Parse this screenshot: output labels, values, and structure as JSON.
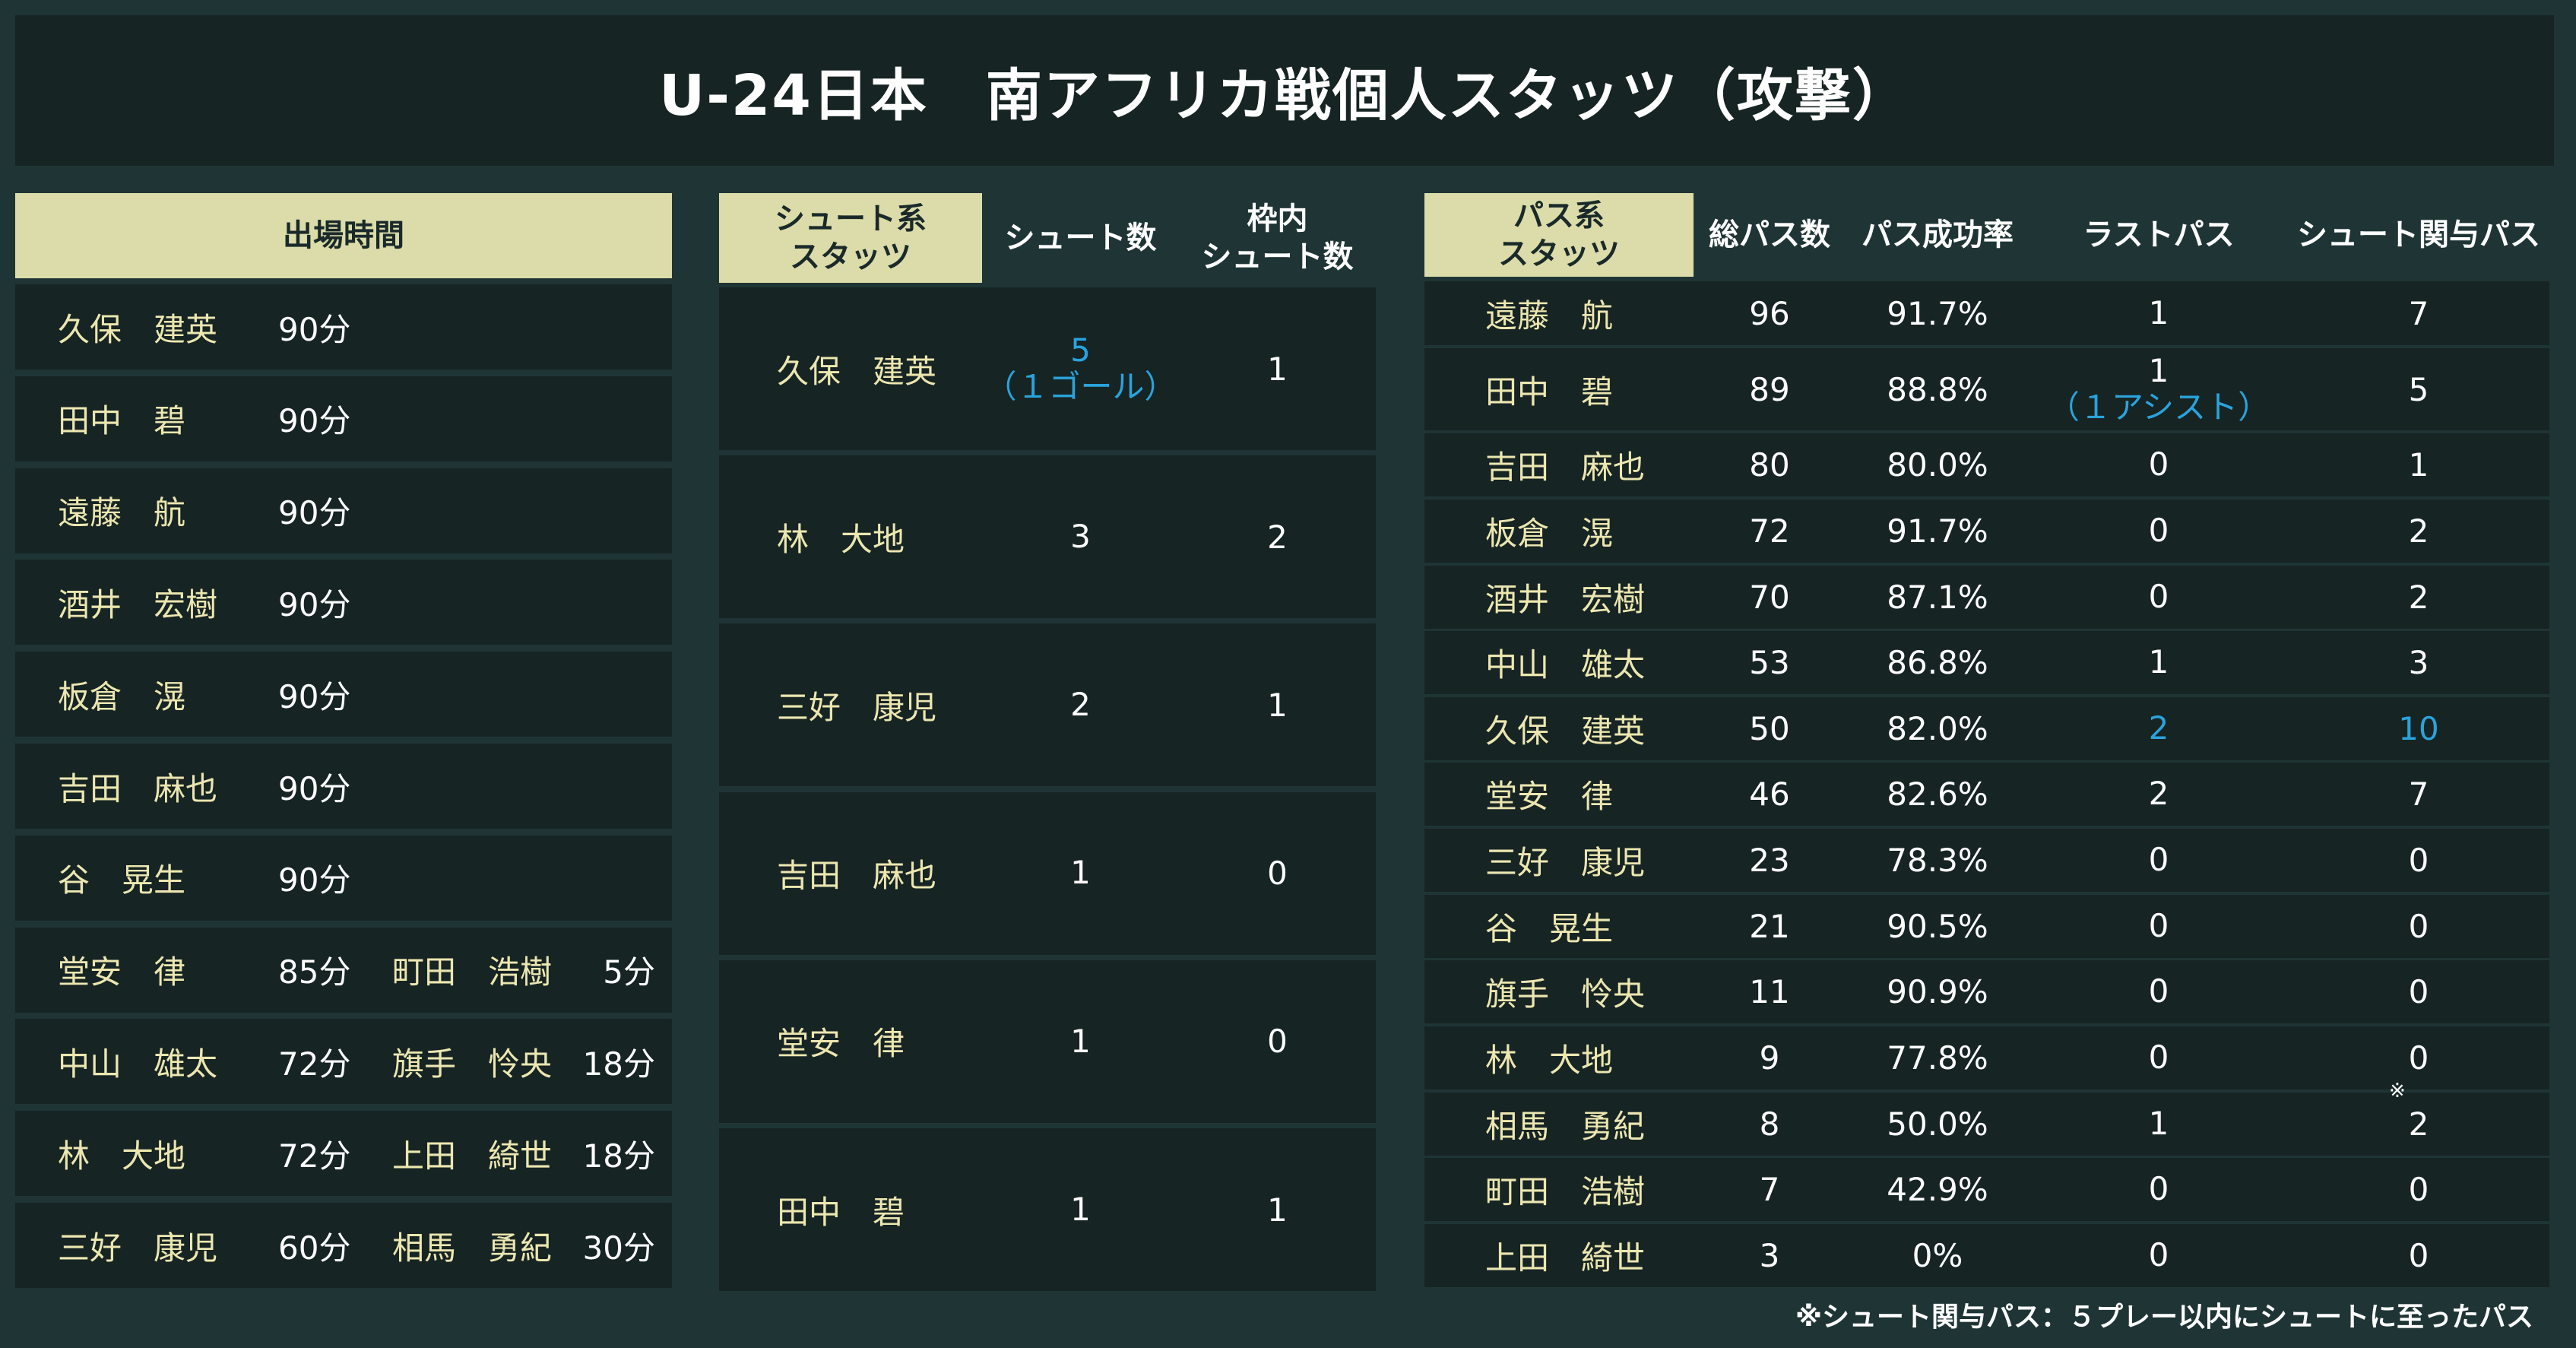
{
  "title": "U-24日本　南アフリカ戦個人スタッツ（攻撃）",
  "playing_time": {
    "header": "出場時間",
    "rows": [
      {
        "name": "久保　建英",
        "time": "90分"
      },
      {
        "name": "田中　碧",
        "time": "90分"
      },
      {
        "name": "遠藤　航",
        "time": "90分"
      },
      {
        "name": "酒井　宏樹",
        "time": "90分"
      },
      {
        "name": "板倉　滉",
        "time": "90分"
      },
      {
        "name": "吉田　麻也",
        "time": "90分"
      },
      {
        "name": "谷　晃生",
        "time": "90分"
      },
      {
        "name": "堂安　律",
        "time": "85分",
        "sub_name": "町田　浩樹",
        "sub_time": "5分"
      },
      {
        "name": "中山　雄太",
        "time": "72分",
        "sub_name": "旗手　怜央",
        "sub_time": "18分"
      },
      {
        "name": "林　大地",
        "time": "72分",
        "sub_name": "上田　綺世",
        "sub_time": "18分"
      },
      {
        "name": "三好　康児",
        "time": "60分",
        "sub_name": "相馬　勇紀",
        "sub_time": "30分"
      }
    ]
  },
  "shot_stats": {
    "headers": [
      "シュート系\nスタッツ",
      "シュート数",
      "枠内\nシュート数"
    ],
    "rows": [
      {
        "name": "久保　建英",
        "shots": "5",
        "shots_note": "（１ゴール）",
        "on_target": "1"
      },
      {
        "name": "林　大地",
        "shots": "3",
        "shots_note": "",
        "on_target": "2"
      },
      {
        "name": "三好　康児",
        "shots": "2",
        "shots_note": "",
        "on_target": "1"
      },
      {
        "name": "吉田　麻也",
        "shots": "1",
        "shots_note": "",
        "on_target": "0"
      },
      {
        "name": "堂安　律",
        "shots": "1",
        "shots_note": "",
        "on_target": "0"
      },
      {
        "name": "田中　碧",
        "shots": "1",
        "shots_note": "",
        "on_target": "1"
      }
    ]
  },
  "pass_stats": {
    "headers": [
      "パス系\nスタッツ",
      "総パス数",
      "パス成功率",
      "ラストパス",
      "シュート関与パス"
    ],
    "rows": [
      {
        "name": "遠藤　航",
        "total": "96",
        "rate": "91.7%",
        "last": "1",
        "last_note": "",
        "involved": "7"
      },
      {
        "name": "田中　碧",
        "total": "89",
        "rate": "88.8%",
        "last": "1",
        "last_note": "（１アシスト）",
        "involved": "5"
      },
      {
        "name": "吉田　麻也",
        "total": "80",
        "rate": "80.0%",
        "last": "0",
        "last_note": "",
        "involved": "1"
      },
      {
        "name": "板倉　滉",
        "total": "72",
        "rate": "91.7%",
        "last": "0",
        "last_note": "",
        "involved": "2"
      },
      {
        "name": "酒井　宏樹",
        "total": "70",
        "rate": "87.1%",
        "last": "0",
        "last_note": "",
        "involved": "2"
      },
      {
        "name": "中山　雄太",
        "total": "53",
        "rate": "86.8%",
        "last": "1",
        "last_note": "",
        "involved": "3"
      },
      {
        "name": "久保　建英",
        "total": "50",
        "rate": "82.0%",
        "last": "2",
        "last_note": "",
        "involved": "10",
        "highlight": true
      },
      {
        "name": "堂安　律",
        "total": "46",
        "rate": "82.6%",
        "last": "2",
        "last_note": "",
        "involved": "7"
      },
      {
        "name": "三好　康児",
        "total": "23",
        "rate": "78.3%",
        "last": "0",
        "last_note": "",
        "involved": "0"
      },
      {
        "name": "谷　晃生",
        "total": "21",
        "rate": "90.5%",
        "last": "0",
        "last_note": "",
        "involved": "0"
      },
      {
        "name": "旗手　怜央",
        "total": "11",
        "rate": "90.9%",
        "last": "0",
        "last_note": "",
        "involved": "0"
      },
      {
        "name": "林　大地",
        "total": "9",
        "rate": "77.8%",
        "last": "0",
        "last_note": "",
        "involved": "0"
      },
      {
        "name": "相馬　勇紀",
        "total": "8",
        "rate": "50.0%",
        "last": "1",
        "last_note": "",
        "involved": "2"
      },
      {
        "name": "町田　浩樹",
        "total": "7",
        "rate": "42.9%",
        "last": "0",
        "last_note": "",
        "involved": "0"
      },
      {
        "name": "上田　綺世",
        "total": "3",
        "rate": "0%",
        "last": "0",
        "last_note": "",
        "involved": "0"
      }
    ]
  },
  "footnote": "※シュート関与パス：５プレー以内にシュートに至ったパス",
  "footnote_mark": "※",
  "colors": {
    "background": "#1f3535",
    "panel": "#172424",
    "header": "#dcdcaa",
    "name": "#ece7b0",
    "highlight": "#2aa3dc"
  }
}
